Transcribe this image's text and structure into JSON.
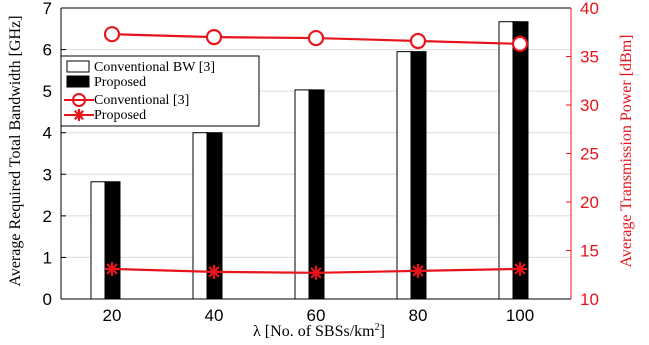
{
  "chart_data": {
    "type": "bar",
    "categories": [
      "20",
      "40",
      "60",
      "80",
      "100"
    ],
    "xlabel_prefix": "λ [No. of SBSs/km",
    "xlabel_sup": "2",
    "xlabel_suffix": "]",
    "ylabel": "Average Required Total Bandwidth [GHz]",
    "ylim": [
      0,
      7
    ],
    "yticks": [
      "0",
      "1",
      "2",
      "3",
      "4",
      "5",
      "6",
      "7"
    ],
    "y2label": "Average Transmission Power [dBm]",
    "y2lim": [
      10,
      40
    ],
    "y2ticks": [
      "10",
      "15",
      "20",
      "25",
      "30",
      "35",
      "40"
    ],
    "grid": "horizontal",
    "legend_position": "top-left",
    "series": [
      {
        "name": "Conventional BW [3]",
        "type": "bar",
        "axis": "left",
        "fill": "#ffffff",
        "values": [
          2.82,
          4.0,
          5.03,
          5.95,
          6.67
        ]
      },
      {
        "name": "Proposed",
        "type": "bar",
        "axis": "left",
        "fill": "#000000",
        "values": [
          2.82,
          4.0,
          5.03,
          5.95,
          6.67
        ]
      },
      {
        "name": "Conventional [3]",
        "type": "line",
        "axis": "right",
        "color": "#e8141b",
        "marker": "circle",
        "values": [
          37.3,
          37.0,
          36.9,
          36.6,
          36.3
        ]
      },
      {
        "name": "Proposed",
        "type": "line",
        "axis": "right",
        "color": "#e8141b",
        "marker": "asterisk",
        "values": [
          13.1,
          12.8,
          12.7,
          12.9,
          13.1
        ]
      }
    ]
  }
}
